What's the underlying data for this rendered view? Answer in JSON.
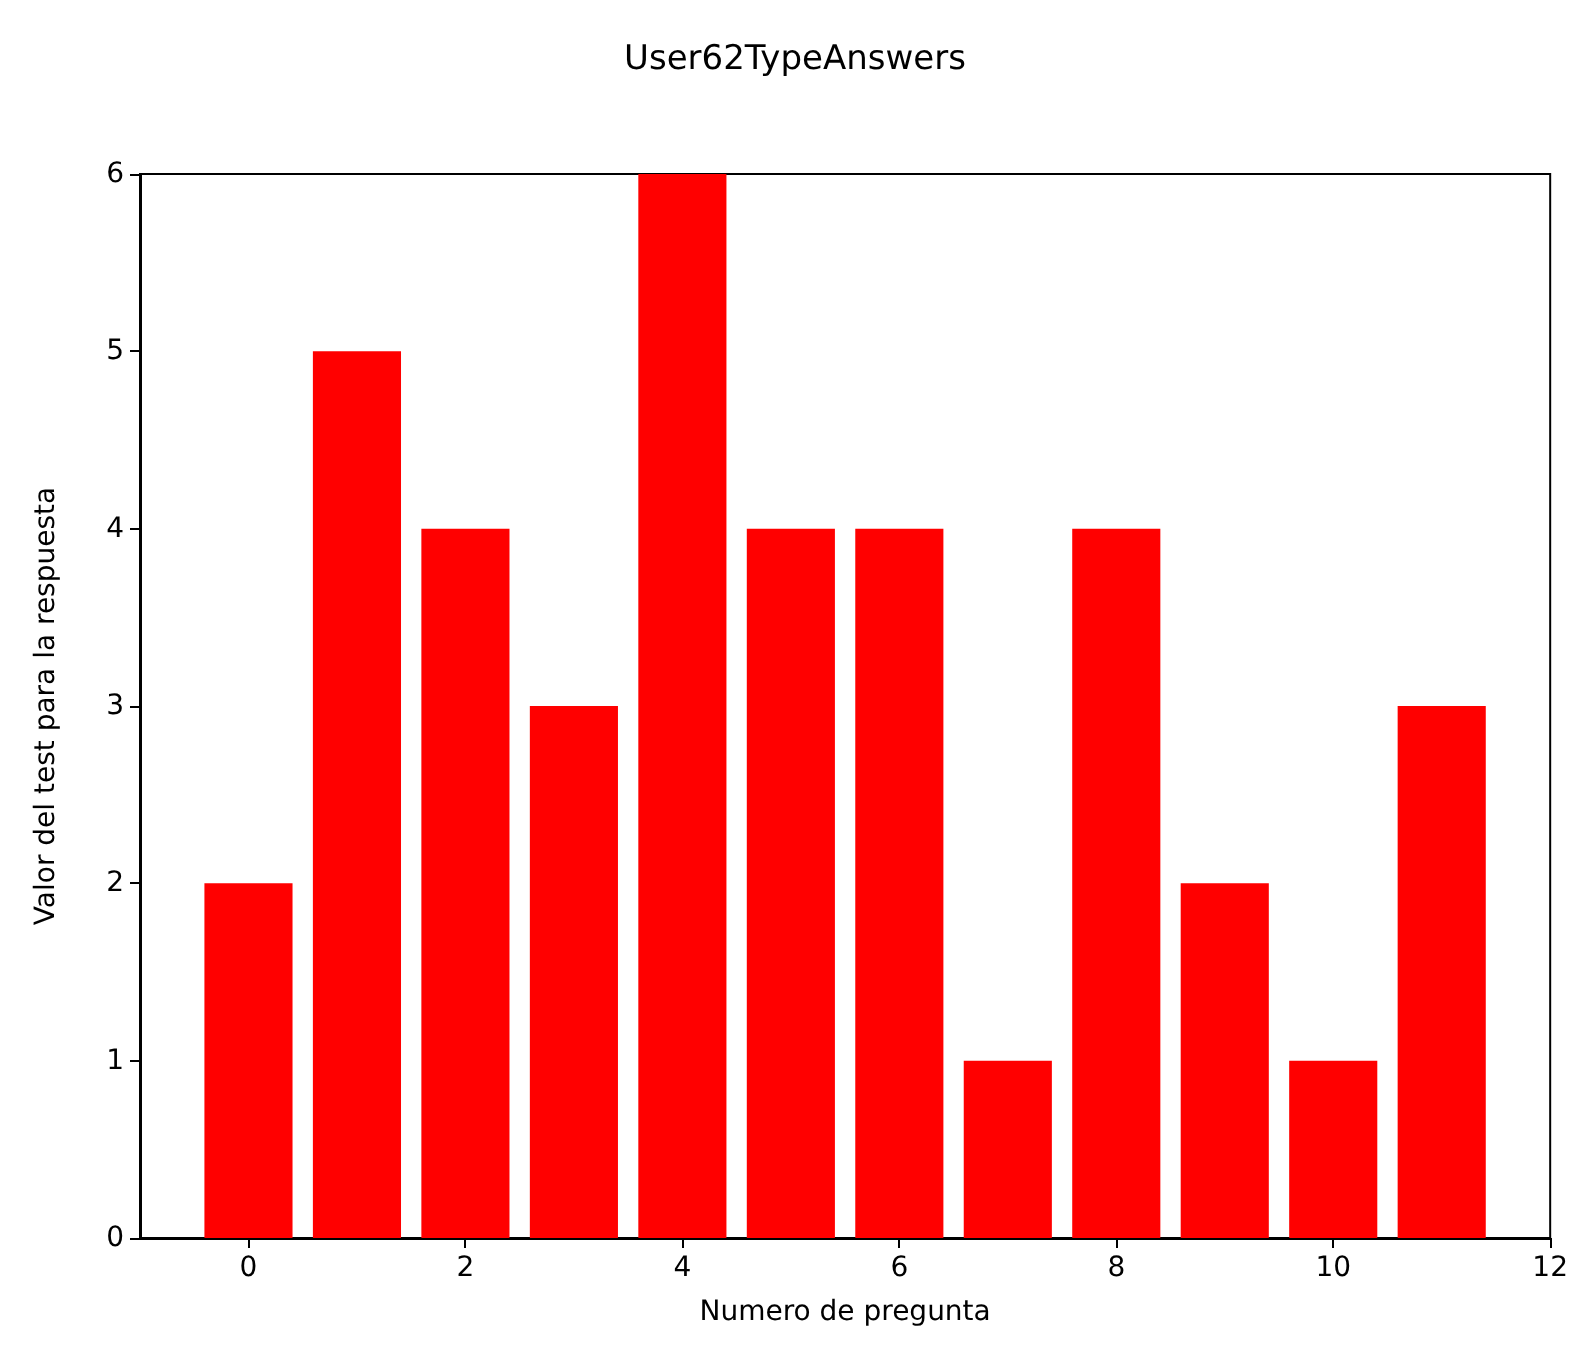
{
  "chart_data": {
    "type": "bar",
    "title": "User62TypeAnswers",
    "xlabel": "Numero de pregunta",
    "ylabel": "Valor del test para la respuesta",
    "x": [
      0,
      1,
      2,
      3,
      4,
      5,
      6,
      7,
      8,
      9,
      10,
      11
    ],
    "values": [
      2,
      5,
      4,
      3,
      6,
      4,
      4,
      1,
      4,
      2,
      1,
      3
    ],
    "color": "#ff0000",
    "xlim": [
      -1,
      12
    ],
    "xticks": [
      0,
      2,
      4,
      6,
      8,
      10,
      12
    ],
    "ylim": [
      0,
      6
    ],
    "yticks": [
      0,
      1,
      2,
      3,
      4,
      5,
      6
    ],
    "grid": false
  }
}
